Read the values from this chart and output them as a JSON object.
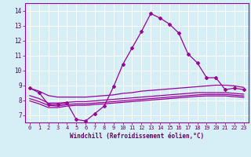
{
  "title": "",
  "xlabel": "Windchill (Refroidissement éolien,°C)",
  "ylabel": "",
  "background_color": "#d6eef5",
  "grid_color": "#ffffff",
  "line_color": "#990099",
  "xlim": [
    -0.5,
    23.5
  ],
  "ylim": [
    6.5,
    14.5
  ],
  "xticks": [
    0,
    1,
    2,
    3,
    4,
    5,
    6,
    7,
    8,
    9,
    10,
    11,
    12,
    13,
    14,
    15,
    16,
    17,
    18,
    19,
    20,
    21,
    22,
    23
  ],
  "yticks": [
    7,
    8,
    9,
    10,
    11,
    12,
    13,
    14
  ],
  "lines": [
    {
      "x": [
        0,
        1,
        2,
        3,
        4,
        5,
        6,
        7,
        8,
        9,
        10,
        11,
        12,
        13,
        14,
        15,
        16,
        17,
        18,
        19,
        20,
        21,
        22,
        23
      ],
      "y": [
        8.8,
        8.5,
        7.7,
        7.7,
        7.8,
        6.7,
        6.6,
        7.1,
        7.6,
        8.9,
        10.4,
        11.5,
        12.6,
        13.8,
        13.5,
        13.1,
        12.5,
        11.1,
        10.5,
        9.5,
        9.5,
        8.7,
        8.8,
        8.7
      ],
      "marker": "D",
      "markersize": 2.0
    },
    {
      "x": [
        0,
        1,
        2,
        3,
        4,
        5,
        6,
        7,
        8,
        9,
        10,
        11,
        12,
        13,
        14,
        15,
        16,
        17,
        18,
        19,
        20,
        21,
        22,
        23
      ],
      "y": [
        8.8,
        8.6,
        8.3,
        8.2,
        8.2,
        8.2,
        8.2,
        8.25,
        8.3,
        8.35,
        8.45,
        8.5,
        8.6,
        8.65,
        8.7,
        8.75,
        8.8,
        8.85,
        8.9,
        8.95,
        9.0,
        9.0,
        8.95,
        8.85
      ],
      "marker": null,
      "markersize": 0
    },
    {
      "x": [
        0,
        1,
        2,
        3,
        4,
        5,
        6,
        7,
        8,
        9,
        10,
        11,
        12,
        13,
        14,
        15,
        16,
        17,
        18,
        19,
        20,
        21,
        22,
        23
      ],
      "y": [
        8.3,
        8.1,
        7.8,
        7.8,
        7.85,
        7.9,
        7.9,
        7.95,
        8.0,
        8.05,
        8.1,
        8.15,
        8.2,
        8.25,
        8.3,
        8.35,
        8.4,
        8.45,
        8.5,
        8.5,
        8.5,
        8.5,
        8.45,
        8.4
      ],
      "marker": null,
      "markersize": 0
    },
    {
      "x": [
        0,
        1,
        2,
        3,
        4,
        5,
        6,
        7,
        8,
        9,
        10,
        11,
        12,
        13,
        14,
        15,
        16,
        17,
        18,
        19,
        20,
        21,
        22,
        23
      ],
      "y": [
        8.1,
        7.9,
        7.65,
        7.6,
        7.7,
        7.75,
        7.75,
        7.8,
        7.85,
        7.9,
        7.95,
        8.0,
        8.05,
        8.1,
        8.15,
        8.2,
        8.25,
        8.3,
        8.35,
        8.38,
        8.38,
        8.38,
        8.33,
        8.28
      ],
      "marker": null,
      "markersize": 0
    },
    {
      "x": [
        0,
        1,
        2,
        3,
        4,
        5,
        6,
        7,
        8,
        9,
        10,
        11,
        12,
        13,
        14,
        15,
        16,
        17,
        18,
        19,
        20,
        21,
        22,
        23
      ],
      "y": [
        7.95,
        7.75,
        7.5,
        7.5,
        7.6,
        7.65,
        7.65,
        7.7,
        7.75,
        7.8,
        7.85,
        7.9,
        7.95,
        8.0,
        8.05,
        8.1,
        8.15,
        8.2,
        8.25,
        8.28,
        8.28,
        8.28,
        8.23,
        8.18
      ],
      "marker": null,
      "markersize": 0
    }
  ]
}
